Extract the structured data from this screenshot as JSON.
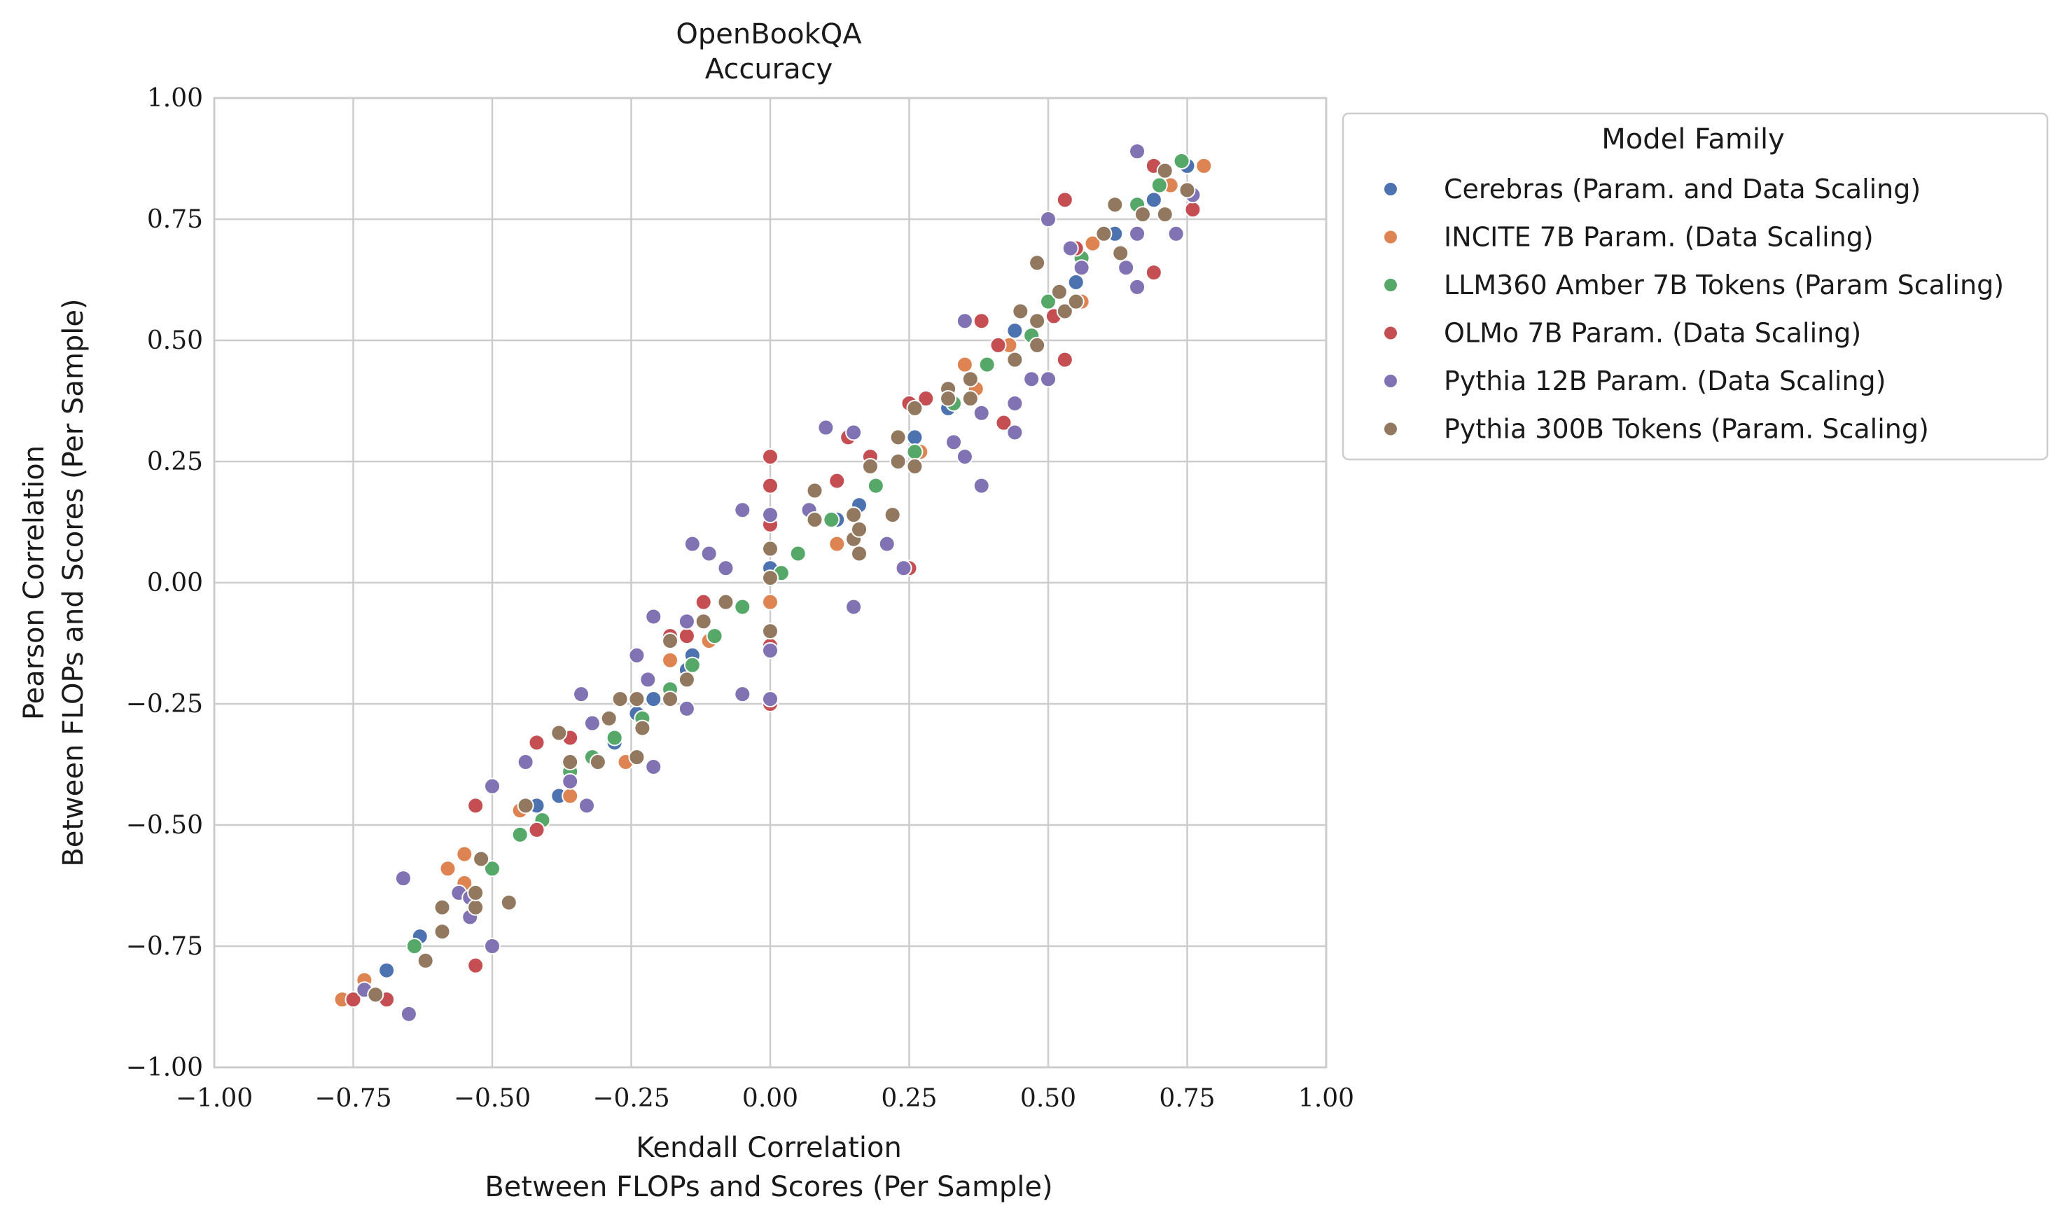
{
  "chart_data": {
    "type": "scatter",
    "title": [
      "OpenBookQA",
      "Accuracy"
    ],
    "xlabel": [
      "Kendall Correlation",
      "Between FLOPs and Scores (Per Sample)"
    ],
    "ylabel": [
      "Pearson Correlation",
      "Between FLOPs and Scores (Per Sample)"
    ],
    "xlim": [
      -1.0,
      1.0
    ],
    "ylim": [
      -1.0,
      1.0
    ],
    "xticks": [
      -1.0,
      -0.75,
      -0.5,
      -0.25,
      0.0,
      0.25,
      0.5,
      0.75,
      1.0
    ],
    "yticks": [
      -1.0,
      -0.75,
      -0.5,
      -0.25,
      0.0,
      0.25,
      0.5,
      0.75,
      1.0
    ],
    "xtick_labels": [
      "−1.00",
      "−0.75",
      "−0.50",
      "−0.25",
      "0.00",
      "0.25",
      "0.50",
      "0.75",
      "1.00"
    ],
    "ytick_labels": [
      "−1.00",
      "−0.75",
      "−0.50",
      "−0.25",
      "0.00",
      "0.25",
      "0.50",
      "0.75",
      "1.00"
    ],
    "grid": true,
    "legend": {
      "title": "Model Family",
      "placement": "outside-right-top"
    },
    "series": [
      {
        "name": "Cerebras (Param. and Data Scaling)",
        "color": "#4c72b0",
        "points": [
          [
            -0.75,
            -0.86
          ],
          [
            -0.69,
            -0.8
          ],
          [
            -0.63,
            -0.73
          ],
          [
            -0.52,
            -0.57
          ],
          [
            -0.42,
            -0.46
          ],
          [
            -0.38,
            -0.44
          ],
          [
            -0.28,
            -0.33
          ],
          [
            -0.24,
            -0.27
          ],
          [
            -0.21,
            -0.24
          ],
          [
            -0.15,
            -0.18
          ],
          [
            -0.14,
            -0.15
          ],
          [
            0.0,
            0.03
          ],
          [
            0.12,
            0.13
          ],
          [
            0.16,
            0.16
          ],
          [
            0.26,
            0.3
          ],
          [
            0.32,
            0.36
          ],
          [
            0.44,
            0.52
          ],
          [
            0.55,
            0.62
          ],
          [
            0.62,
            0.72
          ],
          [
            0.69,
            0.79
          ],
          [
            0.75,
            0.86
          ]
        ]
      },
      {
        "name": "INCITE 7B Param. (Data Scaling)",
        "color": "#dd8452",
        "points": [
          [
            -0.77,
            -0.86
          ],
          [
            -0.73,
            -0.82
          ],
          [
            -0.55,
            -0.56
          ],
          [
            -0.55,
            -0.62
          ],
          [
            -0.58,
            -0.59
          ],
          [
            -0.45,
            -0.47
          ],
          [
            -0.36,
            -0.44
          ],
          [
            -0.26,
            -0.37
          ],
          [
            -0.18,
            -0.16
          ],
          [
            -0.11,
            -0.12
          ],
          [
            0.0,
            -0.04
          ],
          [
            0.12,
            0.08
          ],
          [
            0.19,
            0.2
          ],
          [
            0.27,
            0.27
          ],
          [
            0.35,
            0.45
          ],
          [
            0.37,
            0.4
          ],
          [
            0.43,
            0.49
          ],
          [
            0.56,
            0.58
          ],
          [
            0.58,
            0.7
          ],
          [
            0.72,
            0.82
          ],
          [
            0.78,
            0.86
          ]
        ]
      },
      {
        "name": "LLM360 Amber 7B Tokens (Param Scaling)",
        "color": "#55a868",
        "points": [
          [
            -0.64,
            -0.75
          ],
          [
            -0.5,
            -0.59
          ],
          [
            -0.45,
            -0.52
          ],
          [
            -0.41,
            -0.49
          ],
          [
            -0.36,
            -0.39
          ],
          [
            -0.32,
            -0.36
          ],
          [
            -0.28,
            -0.32
          ],
          [
            -0.23,
            -0.28
          ],
          [
            -0.18,
            -0.22
          ],
          [
            -0.14,
            -0.17
          ],
          [
            -0.1,
            -0.11
          ],
          [
            -0.05,
            -0.05
          ],
          [
            0.02,
            0.02
          ],
          [
            0.05,
            0.06
          ],
          [
            0.11,
            0.13
          ],
          [
            0.19,
            0.2
          ],
          [
            0.26,
            0.27
          ],
          [
            0.33,
            0.37
          ],
          [
            0.39,
            0.45
          ],
          [
            0.47,
            0.51
          ],
          [
            0.5,
            0.58
          ],
          [
            0.56,
            0.67
          ],
          [
            0.66,
            0.78
          ],
          [
            0.7,
            0.82
          ],
          [
            0.74,
            0.87
          ]
        ]
      },
      {
        "name": "OLMo 7B Param. (Data Scaling)",
        "color": "#c44e52",
        "points": [
          [
            -0.75,
            -0.86
          ],
          [
            -0.69,
            -0.86
          ],
          [
            -0.53,
            -0.79
          ],
          [
            -0.53,
            -0.46
          ],
          [
            -0.42,
            -0.33
          ],
          [
            -0.42,
            -0.51
          ],
          [
            -0.36,
            -0.32
          ],
          [
            -0.18,
            -0.11
          ],
          [
            -0.15,
            -0.11
          ],
          [
            -0.15,
            -0.08
          ],
          [
            -0.12,
            -0.04
          ],
          [
            0.0,
            0.26
          ],
          [
            0.0,
            0.2
          ],
          [
            0.0,
            0.12
          ],
          [
            0.0,
            -0.13
          ],
          [
            0.0,
            -0.25
          ],
          [
            0.12,
            0.21
          ],
          [
            0.14,
            0.3
          ],
          [
            0.18,
            0.26
          ],
          [
            0.25,
            0.37
          ],
          [
            0.25,
            0.03
          ],
          [
            0.28,
            0.38
          ],
          [
            0.38,
            0.54
          ],
          [
            0.41,
            0.49
          ],
          [
            0.42,
            0.33
          ],
          [
            0.51,
            0.55
          ],
          [
            0.53,
            0.79
          ],
          [
            0.53,
            0.46
          ],
          [
            0.55,
            0.69
          ],
          [
            0.69,
            0.64
          ],
          [
            0.69,
            0.86
          ],
          [
            0.76,
            0.77
          ]
        ]
      },
      {
        "name": "Pythia 12B Param. (Data Scaling)",
        "color": "#8172b3",
        "points": [
          [
            -0.73,
            -0.84
          ],
          [
            -0.65,
            -0.89
          ],
          [
            -0.66,
            -0.61
          ],
          [
            -0.56,
            -0.64
          ],
          [
            -0.54,
            -0.69
          ],
          [
            -0.54,
            -0.65
          ],
          [
            -0.5,
            -0.75
          ],
          [
            -0.5,
            -0.42
          ],
          [
            -0.44,
            -0.37
          ],
          [
            -0.36,
            -0.41
          ],
          [
            -0.33,
            -0.46
          ],
          [
            -0.34,
            -0.23
          ],
          [
            -0.32,
            -0.29
          ],
          [
            -0.24,
            -0.15
          ],
          [
            -0.22,
            -0.2
          ],
          [
            -0.21,
            -0.07
          ],
          [
            -0.21,
            -0.38
          ],
          [
            -0.15,
            -0.26
          ],
          [
            -0.15,
            -0.08
          ],
          [
            -0.14,
            0.08
          ],
          [
            -0.11,
            0.06
          ],
          [
            -0.08,
            0.03
          ],
          [
            -0.05,
            0.15
          ],
          [
            -0.05,
            -0.23
          ],
          [
            0.0,
            0.14
          ],
          [
            0.0,
            -0.14
          ],
          [
            0.0,
            -0.24
          ],
          [
            0.07,
            0.15
          ],
          [
            0.1,
            0.32
          ],
          [
            0.15,
            0.31
          ],
          [
            0.15,
            -0.05
          ],
          [
            0.21,
            0.08
          ],
          [
            0.24,
            0.03
          ],
          [
            0.33,
            0.29
          ],
          [
            0.35,
            0.26
          ],
          [
            0.35,
            0.54
          ],
          [
            0.38,
            0.35
          ],
          [
            0.38,
            0.2
          ],
          [
            0.44,
            0.37
          ],
          [
            0.44,
            0.31
          ],
          [
            0.47,
            0.42
          ],
          [
            0.5,
            0.42
          ],
          [
            0.5,
            0.75
          ],
          [
            0.54,
            0.69
          ],
          [
            0.56,
            0.65
          ],
          [
            0.64,
            0.65
          ],
          [
            0.66,
            0.61
          ],
          [
            0.66,
            0.72
          ],
          [
            0.66,
            0.89
          ],
          [
            0.73,
            0.72
          ],
          [
            0.76,
            0.8
          ]
        ]
      },
      {
        "name": "Pythia 300B Tokens (Param. Scaling)",
        "color": "#937860",
        "points": [
          [
            -0.71,
            -0.85
          ],
          [
            -0.62,
            -0.78
          ],
          [
            -0.59,
            -0.72
          ],
          [
            -0.59,
            -0.67
          ],
          [
            -0.53,
            -0.67
          ],
          [
            -0.53,
            -0.64
          ],
          [
            -0.52,
            -0.57
          ],
          [
            -0.47,
            -0.66
          ],
          [
            -0.44,
            -0.46
          ],
          [
            -0.38,
            -0.31
          ],
          [
            -0.36,
            -0.37
          ],
          [
            -0.31,
            -0.37
          ],
          [
            -0.29,
            -0.28
          ],
          [
            -0.27,
            -0.24
          ],
          [
            -0.24,
            -0.36
          ],
          [
            -0.24,
            -0.24
          ],
          [
            -0.23,
            -0.3
          ],
          [
            -0.18,
            -0.12
          ],
          [
            -0.18,
            -0.24
          ],
          [
            -0.15,
            -0.2
          ],
          [
            -0.12,
            -0.08
          ],
          [
            -0.08,
            -0.04
          ],
          [
            0.0,
            0.07
          ],
          [
            0.0,
            0.01
          ],
          [
            0.0,
            -0.1
          ],
          [
            0.08,
            0.19
          ],
          [
            0.08,
            0.13
          ],
          [
            0.15,
            0.14
          ],
          [
            0.15,
            0.09
          ],
          [
            0.16,
            0.06
          ],
          [
            0.16,
            0.11
          ],
          [
            0.18,
            0.24
          ],
          [
            0.22,
            0.14
          ],
          [
            0.23,
            0.3
          ],
          [
            0.23,
            0.25
          ],
          [
            0.26,
            0.36
          ],
          [
            0.26,
            0.24
          ],
          [
            0.32,
            0.4
          ],
          [
            0.32,
            0.38
          ],
          [
            0.36,
            0.38
          ],
          [
            0.36,
            0.42
          ],
          [
            0.44,
            0.46
          ],
          [
            0.45,
            0.56
          ],
          [
            0.48,
            0.66
          ],
          [
            0.48,
            0.54
          ],
          [
            0.48,
            0.49
          ],
          [
            0.52,
            0.6
          ],
          [
            0.53,
            0.56
          ],
          [
            0.55,
            0.58
          ],
          [
            0.6,
            0.72
          ],
          [
            0.62,
            0.78
          ],
          [
            0.63,
            0.68
          ],
          [
            0.67,
            0.76
          ],
          [
            0.71,
            0.85
          ],
          [
            0.71,
            0.76
          ],
          [
            0.75,
            0.81
          ]
        ]
      }
    ]
  }
}
